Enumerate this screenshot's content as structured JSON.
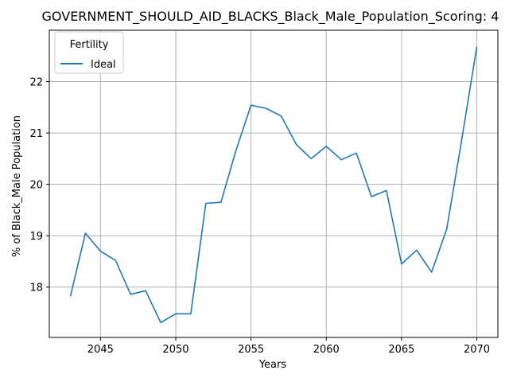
{
  "chart_data": {
    "type": "line",
    "title": "GOVERNMENT_SHOULD_AID_BLACKS_Black_Male_Population_Scoring: 4",
    "xlabel": "Years",
    "ylabel": "% of Black_Male Population",
    "xlim": [
      2041.6,
      2071.4
    ],
    "ylim": [
      17.02,
      23.0
    ],
    "xticks": [
      2045,
      2050,
      2055,
      2060,
      2065,
      2070
    ],
    "yticks": [
      18,
      19,
      20,
      21,
      22
    ],
    "grid": true,
    "legend": {
      "title": "Fertility",
      "placement": "upper-left"
    },
    "series": [
      {
        "name": "Ideal",
        "color": "#1f77b4",
        "x": [
          2043,
          2044,
          2045,
          2046,
          2047,
          2048,
          2049,
          2050,
          2051,
          2052,
          2053,
          2054,
          2055,
          2056,
          2057,
          2058,
          2059,
          2060,
          2061,
          2062,
          2063,
          2064,
          2065,
          2066,
          2067,
          2068,
          2069,
          2070
        ],
        "y": [
          17.82,
          19.05,
          18.7,
          18.52,
          17.86,
          17.93,
          17.31,
          17.48,
          17.48,
          19.63,
          19.65,
          20.66,
          21.54,
          21.48,
          21.33,
          20.78,
          20.5,
          20.74,
          20.48,
          20.61,
          19.76,
          19.88,
          18.45,
          18.72,
          18.29,
          19.13,
          20.87,
          22.68
        ]
      }
    ]
  }
}
